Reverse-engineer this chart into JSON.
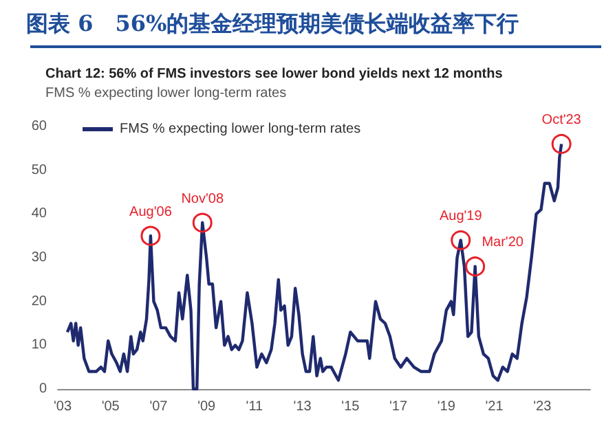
{
  "chart_data": {
    "type": "line",
    "title": "图表 6　56%的基金经理预期美债长端收益率下行",
    "subtitle": "Chart 12: 56% of FMS investors see lower bond yields next 12 months",
    "ylabel": "FMS % expecting lower long-term rates",
    "series": [
      {
        "name": "FMS % expecting lower long-term rates",
        "color": "#1f2a6e",
        "x": [
          2003.2,
          2003.35,
          2003.45,
          2003.55,
          2003.65,
          2003.75,
          2003.9,
          2004.1,
          2004.4,
          2004.6,
          2004.75,
          2004.9,
          2005.05,
          2005.25,
          2005.4,
          2005.55,
          2005.7,
          2005.85,
          2005.95,
          2006.1,
          2006.25,
          2006.35,
          2006.5,
          2006.6,
          2006.67,
          2006.8,
          2006.95,
          2007.1,
          2007.3,
          2007.5,
          2007.7,
          2007.85,
          2008.0,
          2008.2,
          2008.35,
          2008.45,
          2008.6,
          2008.7,
          2008.83,
          2009.0,
          2009.1,
          2009.25,
          2009.4,
          2009.6,
          2009.75,
          2009.9,
          2010.05,
          2010.2,
          2010.35,
          2010.5,
          2010.7,
          2010.9,
          2011.0,
          2011.1,
          2011.3,
          2011.5,
          2011.7,
          2011.85,
          2012.0,
          2012.1,
          2012.25,
          2012.4,
          2012.55,
          2012.7,
          2012.85,
          2013.0,
          2013.15,
          2013.3,
          2013.45,
          2013.6,
          2013.75,
          2013.85,
          2014.0,
          2014.2,
          2014.5,
          2014.8,
          2015.0,
          2015.3,
          2015.7,
          2015.8,
          2016.05,
          2016.25,
          2016.45,
          2016.65,
          2016.85,
          2017.1,
          2017.35,
          2017.65,
          2017.95,
          2018.3,
          2018.5,
          2018.8,
          2019.0,
          2019.2,
          2019.3,
          2019.45,
          2019.6,
          2019.75,
          2019.9,
          2020.05,
          2020.2,
          2020.35,
          2020.55,
          2020.75,
          2020.95,
          2021.15,
          2021.35,
          2021.55,
          2021.75,
          2021.95,
          2022.15,
          2022.35,
          2022.55,
          2022.75,
          2022.95,
          2023.1,
          2023.3,
          2023.5,
          2023.65,
          2023.72,
          2023.8
        ],
        "values": [
          13,
          15,
          11,
          15,
          10,
          14,
          7,
          4,
          4,
          5,
          4,
          11,
          8,
          6,
          4,
          8,
          4,
          12,
          8,
          9,
          13,
          11,
          16,
          25,
          35,
          20,
          18,
          14,
          14,
          12,
          11,
          22,
          16,
          26,
          18,
          0,
          0,
          24,
          38,
          30,
          24,
          24,
          14,
          20,
          10,
          12,
          9,
          10,
          9,
          11,
          22,
          15,
          10,
          5,
          8,
          6,
          9,
          15,
          25,
          18,
          19,
          10,
          12,
          23,
          17,
          8,
          4,
          4,
          12,
          3,
          7,
          4,
          5,
          5,
          2,
          8,
          13,
          11,
          11,
          7,
          20,
          16,
          15,
          12,
          7,
          5,
          7,
          5,
          4,
          4,
          8,
          11,
          18,
          20,
          17,
          30,
          34,
          28,
          12,
          13,
          28,
          12,
          8,
          7,
          3,
          2,
          5,
          4,
          8,
          7,
          15,
          21,
          30,
          40,
          41,
          47,
          47,
          43,
          46,
          53,
          56
        ]
      }
    ],
    "xlim": [
      2002.8,
      2025
    ],
    "xticks": [
      {
        "value": 2003,
        "label": "'03"
      },
      {
        "value": 2005,
        "label": "'05"
      },
      {
        "value": 2007,
        "label": "'07"
      },
      {
        "value": 2009,
        "label": "'09"
      },
      {
        "value": 2011,
        "label": "'11"
      },
      {
        "value": 2013,
        "label": "'13"
      },
      {
        "value": 2015,
        "label": "'15"
      },
      {
        "value": 2017,
        "label": "'17"
      },
      {
        "value": 2019,
        "label": "'19"
      },
      {
        "value": 2021,
        "label": "'21"
      },
      {
        "value": 2023,
        "label": "'23"
      }
    ],
    "ylim": [
      0,
      60
    ],
    "yticks": [
      0,
      10,
      20,
      30,
      40,
      50,
      60
    ],
    "annotations": [
      {
        "text": "Aug'06",
        "x": 2006.67,
        "y": 35
      },
      {
        "text": "Nov'08",
        "x": 2008.83,
        "y": 38
      },
      {
        "text": "Aug'19",
        "x": 2019.6,
        "y": 34
      },
      {
        "text": "Mar'20",
        "x": 2020.2,
        "y": 28
      },
      {
        "text": "Oct'23",
        "x": 2023.8,
        "y": 56
      }
    ],
    "grid": false,
    "legend": "top left",
    "marker": "none",
    "line_style": "solid"
  }
}
